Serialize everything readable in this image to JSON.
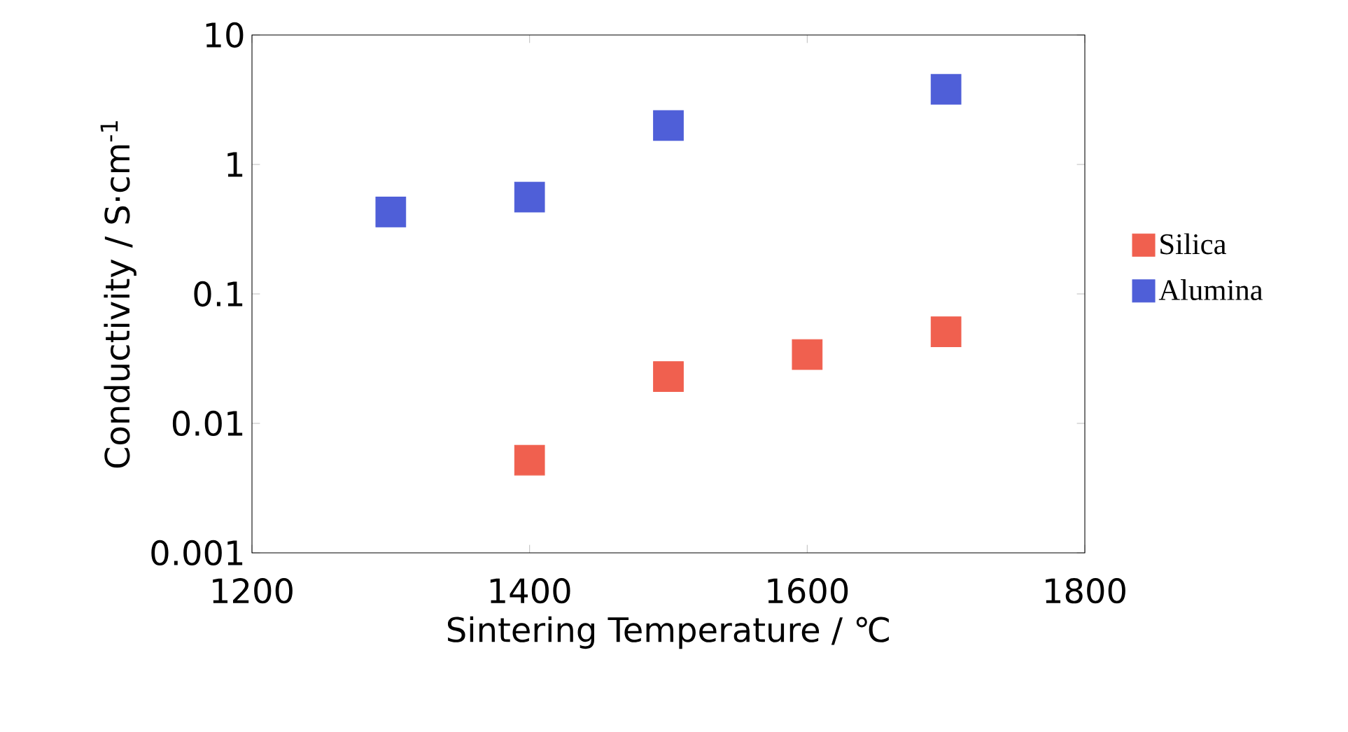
{
  "chart_data": {
    "type": "scatter",
    "xlabel": "Sintering Temperature  / ℃",
    "ylabel": "Conductivity  / S·cm$^{-1}$",
    "xlim": [
      1200,
      1800
    ],
    "xticks": [
      1200,
      1400,
      1600,
      1800
    ],
    "ylim": [
      0.001,
      10
    ],
    "yticks": [
      0.001,
      0.01,
      0.1,
      1,
      10
    ],
    "log": "y",
    "grid": false,
    "legend": "right",
    "marker": "square",
    "series": [
      {
        "name": "Silica",
        "color": "#f0604f",
        "x": [
          1400,
          1500,
          1600,
          1700
        ],
        "values": [
          0.0052,
          0.023,
          0.034,
          0.051
        ]
      },
      {
        "name": "Alumina",
        "color": "#4f5fd8",
        "x": [
          1300,
          1400,
          1500,
          1700
        ],
        "values": [
          0.43,
          0.56,
          2.0,
          3.8
        ]
      }
    ]
  }
}
